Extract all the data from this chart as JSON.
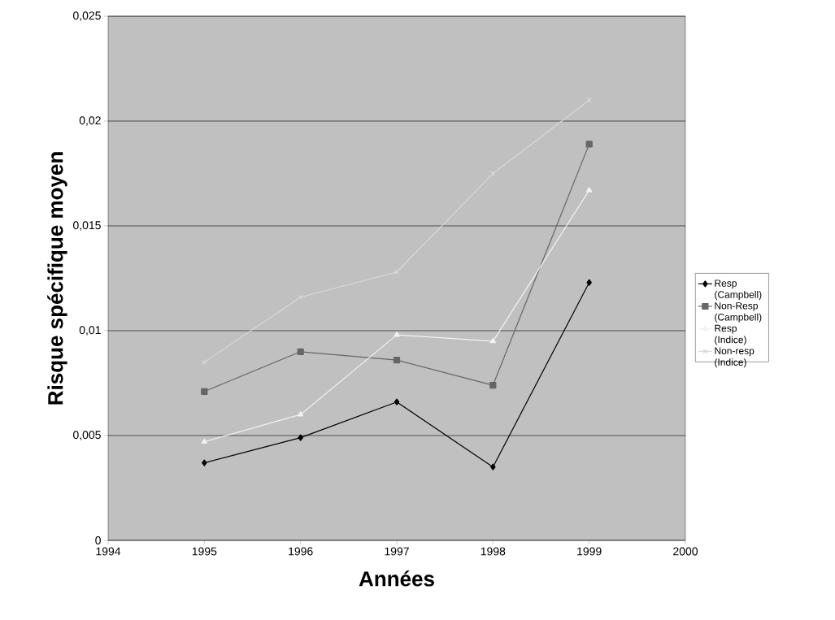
{
  "chart_data": {
    "type": "line",
    "xlabel": "Années",
    "ylabel": "Risque spécifique moyen",
    "x": [
      1995,
      1996,
      1997,
      1998,
      1999
    ],
    "series": [
      {
        "name": "Resp (Campbell)",
        "color": "#000000",
        "marker": "diamond",
        "values": [
          0.0037,
          0.0049,
          0.0066,
          0.0035,
          0.0123
        ]
      },
      {
        "name": "Non-Resp (Campbell)",
        "color": "#666666",
        "marker": "square",
        "values": [
          0.0071,
          0.009,
          0.0086,
          0.0074,
          0.0189
        ]
      },
      {
        "name": "Resp (Indice)",
        "color": "#f2f2f2",
        "marker": "triangle",
        "values": [
          0.0047,
          0.006,
          0.0098,
          0.0095,
          0.0167
        ]
      },
      {
        "name": "Non-resp (Indice)",
        "color": "#d9d9d9",
        "marker": "cross",
        "values": [
          0.0085,
          0.0116,
          0.0128,
          0.0175,
          0.021
        ]
      }
    ],
    "xlim": [
      1994,
      2000
    ],
    "xticks": [
      1994,
      1995,
      1996,
      1997,
      1998,
      1999,
      2000
    ],
    "ylim": [
      0,
      0.025
    ],
    "yticks": [
      0,
      {
        "value": 0.005,
        "label": "0,005"
      },
      {
        "value": 0.01,
        "label": "0,01"
      },
      {
        "value": 0.015,
        "label": "0,015"
      },
      {
        "value": 0.02,
        "label": "0,02"
      },
      {
        "value": 0.025,
        "label": "0,025"
      }
    ],
    "grid": "y",
    "legend": "right",
    "line_style": "solid"
  }
}
